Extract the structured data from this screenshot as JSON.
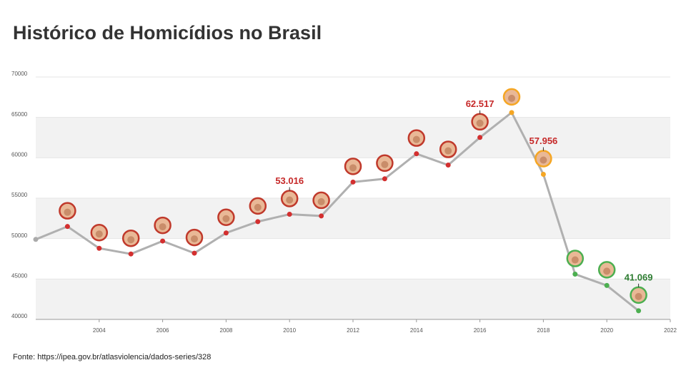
{
  "chart_data": {
    "type": "line",
    "title": "Histórico de Homicídios no Brasil",
    "source": "Fonte: https://ipea.gov.br/atlasviolencia/dados-series/328",
    "x": [
      2002,
      2003,
      2004,
      2005,
      2006,
      2007,
      2008,
      2009,
      2010,
      2011,
      2012,
      2013,
      2014,
      2015,
      2016,
      2017,
      2018,
      2019,
      2020,
      2021
    ],
    "values": [
      49900,
      51500,
      48800,
      48100,
      49700,
      48200,
      50700,
      52100,
      53016,
      52800,
      57000,
      57400,
      60500,
      59100,
      62517,
      65600,
      57956,
      45600,
      44200,
      41069
    ],
    "value_labels": [
      null,
      null,
      null,
      null,
      null,
      null,
      null,
      null,
      "53.016",
      null,
      null,
      null,
      null,
      null,
      "62.517",
      null,
      "57.956",
      null,
      null,
      "41.069"
    ],
    "point_colors": [
      "#aaaaaa",
      "#d32f2f",
      "#d32f2f",
      "#d32f2f",
      "#d32f2f",
      "#d32f2f",
      "#d32f2f",
      "#d32f2f",
      "#d32f2f",
      "#d32f2f",
      "#d32f2f",
      "#d32f2f",
      "#d32f2f",
      "#d32f2f",
      "#d32f2f",
      "#f5a623",
      "#f5a623",
      "#4caf50",
      "#4caf50",
      "#4caf50"
    ],
    "value_label_colors": [
      null,
      null,
      null,
      null,
      null,
      null,
      null,
      null,
      "#c62828",
      null,
      null,
      null,
      null,
      null,
      "#c62828",
      null,
      "#c62828",
      null,
      null,
      "#2e7d32"
    ],
    "line_color": "#b0b0b0",
    "xlim": [
      2002,
      2022
    ],
    "xticks": [
      2004,
      2006,
      2008,
      2010,
      2012,
      2014,
      2016,
      2018,
      2020,
      2022
    ],
    "ylim": [
      40000,
      70000
    ],
    "yticks": [
      40000,
      45000,
      50000,
      55000,
      60000,
      65000,
      70000
    ],
    "grid": "bands"
  }
}
